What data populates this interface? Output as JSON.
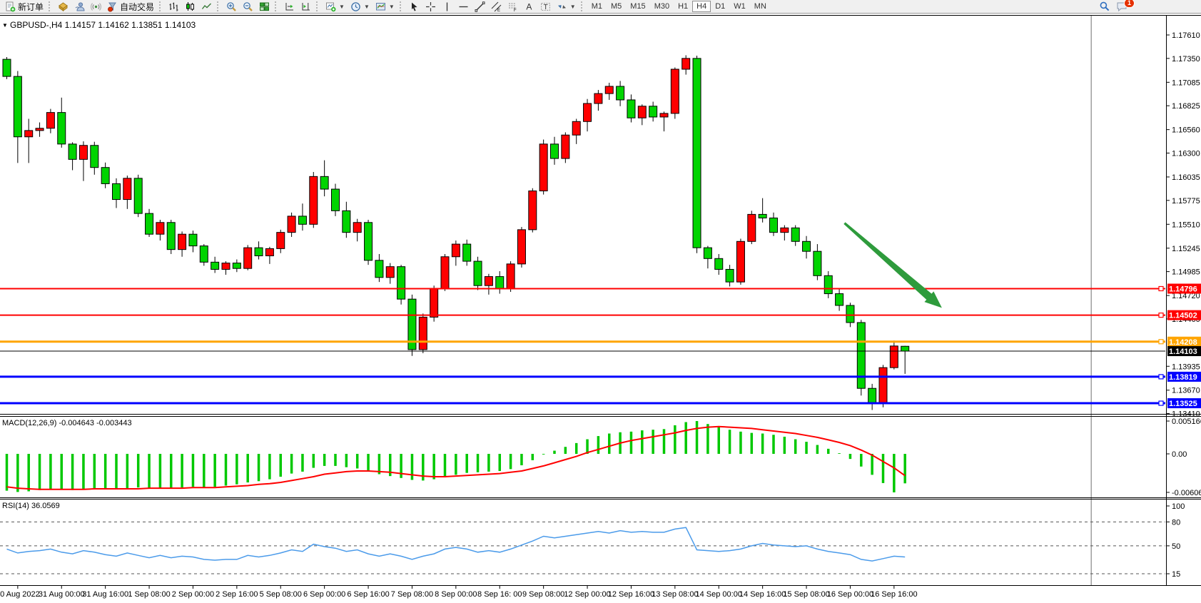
{
  "toolbar": {
    "new_order_label": "新订单",
    "auto_trading_label": "自动交易",
    "timeframes": [
      "M1",
      "M5",
      "M15",
      "M30",
      "H1",
      "H4",
      "D1",
      "W1",
      "MN"
    ],
    "active_timeframe": "H4",
    "notification_count": "1",
    "icon_names": [
      "new-order-icon",
      "market-icon",
      "community-icon",
      "signal-icon",
      "auto-trading-icon",
      "bars-chart-icon",
      "candles-chart-icon",
      "line-chart-icon",
      "zoom-in-icon",
      "zoom-out-icon",
      "tile-windows-icon",
      "auto-scroll-icon",
      "chart-shift-icon",
      "new-chart-icon",
      "periods-clock-icon",
      "templates-icon",
      "cursor-icon",
      "crosshair-icon",
      "vertical-line-icon",
      "horizontal-line-icon",
      "trendline-icon",
      "channel-icon",
      "fibonacci-icon",
      "text-icon",
      "text-label-icon",
      "shapes-icon",
      "search-icon",
      "chat-icon"
    ]
  },
  "chart_data": {
    "type": "candlestick+indicators",
    "title": {
      "collapse_arrow": "▼",
      "symbol_period": "GBPUSD-,H4",
      "open": "1.14157",
      "high": "1.14162",
      "low": "1.13851",
      "close": "1.14103"
    },
    "price_axis_ticks": [
      "1.17610",
      "1.17350",
      "1.17085",
      "1.16825",
      "1.16560",
      "1.16300",
      "1.16035",
      "1.15775",
      "1.15510",
      "1.15245",
      "1.14985",
      "1.14720",
      "1.14460",
      "1.13935",
      "1.13670",
      "1.13410"
    ],
    "time_labels": [
      "30 Aug 2022",
      "31 Aug 00:00",
      "31 Aug 16:00",
      "1 Sep 08:00",
      "2 Sep 00:00",
      "2 Sep 16:00",
      "5 Sep 08:00",
      "6 Sep 00:00",
      "6 Sep 16:00",
      "7 Sep 08:00",
      "8 Sep 00:00",
      "8 Sep 16: 00",
      "9 Sep 08:00",
      "12 Sep 00:00",
      "12 Sep 16:00",
      "13 Sep 08:00",
      "14 Sep 00:00",
      "14 Sep 16:00",
      "15 Sep 08:00",
      "16 Sep 00:00",
      "16 Sep 16:00"
    ],
    "colors": {
      "bull": "#FF0000",
      "bear": "#00D400",
      "wick": "#000000",
      "macd_histogram": "#00C800",
      "macd_signal": "#FF0000",
      "rsi_line": "#4B9BEA"
    },
    "horizontal_lines": [
      {
        "price": 1.14796,
        "color": "#FF0000",
        "width": 2
      },
      {
        "price": 1.14502,
        "color": "#FF0000",
        "width": 2
      },
      {
        "price": 1.14208,
        "color": "#FFA500",
        "width": 3
      },
      {
        "price": 1.13819,
        "color": "#0000FF",
        "width": 3
      },
      {
        "price": 1.13525,
        "color": "#0000FF",
        "width": 3
      }
    ],
    "bid_line": {
      "price": 1.14103,
      "color": "#000000"
    },
    "vertical_line": {
      "bar": 99,
      "color": "#6e6e6e"
    },
    "arrow_annotation": {
      "start_bar": 76.5,
      "start_price": 1.1552,
      "end_bar": 85.3,
      "end_price": 1.1459,
      "color": "#2E9B3C"
    },
    "candles": [
      [
        1.1734,
        1.17365,
        1.1712,
        1.1715
      ],
      [
        1.1715,
        1.1721,
        1.1619,
        1.1648
      ],
      [
        1.1648,
        1.1668,
        1.1619,
        1.1655
      ],
      [
        1.1655,
        1.1664,
        1.1648,
        1.16575
      ],
      [
        1.16575,
        1.1679,
        1.1652,
        1.1675
      ],
      [
        1.1675,
        1.16915,
        1.1636,
        1.164
      ],
      [
        1.164,
        1.1642,
        1.1611,
        1.1623
      ],
      [
        1.1623,
        1.1643,
        1.1599,
        1.16385
      ],
      [
        1.16385,
        1.16425,
        1.1606,
        1.1614
      ],
      [
        1.1614,
        1.16195,
        1.1591,
        1.1596
      ],
      [
        1.1596,
        1.1602,
        1.1569,
        1.15785
      ],
      [
        1.15785,
        1.1605,
        1.1568,
        1.1602
      ],
      [
        1.1602,
        1.1606,
        1.1559,
        1.1563
      ],
      [
        1.1563,
        1.1568,
        1.1537,
        1.154
      ],
      [
        1.154,
        1.1556,
        1.1533,
        1.1553
      ],
      [
        1.1553,
        1.1556,
        1.1518,
        1.1523
      ],
      [
        1.1523,
        1.1543,
        1.1515,
        1.154
      ],
      [
        1.154,
        1.1544,
        1.152,
        1.1527
      ],
      [
        1.1527,
        1.1529,
        1.1505,
        1.1509
      ],
      [
        1.1509,
        1.1515,
        1.1497,
        1.1501
      ],
      [
        1.1501,
        1.151,
        1.1495,
        1.1508
      ],
      [
        1.1508,
        1.1512,
        1.1498,
        1.1502
      ],
      [
        1.1502,
        1.1528,
        1.15,
        1.1525
      ],
      [
        1.1525,
        1.1532,
        1.1512,
        1.1516
      ],
      [
        1.1516,
        1.1526,
        1.1507,
        1.1524
      ],
      [
        1.1524,
        1.1545,
        1.1519,
        1.1542
      ],
      [
        1.1542,
        1.1564,
        1.1537,
        1.156
      ],
      [
        1.156,
        1.1574,
        1.1544,
        1.1551
      ],
      [
        1.1551,
        1.1609,
        1.1547,
        1.1604
      ],
      [
        1.1604,
        1.1622,
        1.1582,
        1.159
      ],
      [
        1.159,
        1.1596,
        1.156,
        1.1566
      ],
      [
        1.1566,
        1.1576,
        1.1536,
        1.1542
      ],
      [
        1.1542,
        1.1557,
        1.1532,
        1.1553
      ],
      [
        1.1553,
        1.1556,
        1.1506,
        1.1511
      ],
      [
        1.1511,
        1.1518,
        1.1487,
        1.1492
      ],
      [
        1.1492,
        1.1508,
        1.1485,
        1.1504
      ],
      [
        1.1504,
        1.1506,
        1.1462,
        1.1468
      ],
      [
        1.1468,
        1.1473,
        1.1405,
        1.1412
      ],
      [
        1.1412,
        1.1452,
        1.1408,
        1.1448
      ],
      [
        1.1448,
        1.1483,
        1.1443,
        1.148
      ],
      [
        1.148,
        1.1518,
        1.1477,
        1.1515
      ],
      [
        1.1515,
        1.1533,
        1.1505,
        1.1529
      ],
      [
        1.1529,
        1.1534,
        1.1505,
        1.151
      ],
      [
        1.151,
        1.1515,
        1.1478,
        1.1483
      ],
      [
        1.1483,
        1.1496,
        1.1473,
        1.1493
      ],
      [
        1.1493,
        1.1499,
        1.1474,
        1.148
      ],
      [
        1.148,
        1.151,
        1.1476,
        1.1507
      ],
      [
        1.1507,
        1.1548,
        1.1503,
        1.1545
      ],
      [
        1.1545,
        1.1591,
        1.1542,
        1.1588
      ],
      [
        1.1588,
        1.1645,
        1.1584,
        1.164
      ],
      [
        1.164,
        1.1648,
        1.1617,
        1.1624
      ],
      [
        1.1624,
        1.1653,
        1.1619,
        1.165
      ],
      [
        1.165,
        1.1668,
        1.164,
        1.1665
      ],
      [
        1.1665,
        1.169,
        1.1654,
        1.1685
      ],
      [
        1.1685,
        1.17,
        1.1677,
        1.1696
      ],
      [
        1.1696,
        1.1708,
        1.1689,
        1.1704
      ],
      [
        1.1704,
        1.171,
        1.1682,
        1.1689
      ],
      [
        1.1689,
        1.1695,
        1.1664,
        1.1669
      ],
      [
        1.1669,
        1.1684,
        1.1661,
        1.1682
      ],
      [
        1.1682,
        1.1687,
        1.1665,
        1.167
      ],
      [
        1.167,
        1.1676,
        1.1654,
        1.1674
      ],
      [
        1.1674,
        1.1725,
        1.1668,
        1.1723
      ],
      [
        1.1723,
        1.17385,
        1.1717,
        1.1735
      ],
      [
        1.1735,
        1.1738,
        1.1519,
        1.1525
      ],
      [
        1.1525,
        1.1527,
        1.1502,
        1.1513
      ],
      [
        1.1513,
        1.1518,
        1.1495,
        1.1501
      ],
      [
        1.1501,
        1.1506,
        1.1482,
        1.1487
      ],
      [
        1.1487,
        1.1535,
        1.1484,
        1.1532
      ],
      [
        1.1532,
        1.1566,
        1.1529,
        1.1562
      ],
      [
        1.1562,
        1.158,
        1.1553,
        1.1558
      ],
      [
        1.1558,
        1.1564,
        1.1538,
        1.1542
      ],
      [
        1.1542,
        1.155,
        1.1533,
        1.1547
      ],
      [
        1.1547,
        1.155,
        1.1527,
        1.1532
      ],
      [
        1.1532,
        1.1538,
        1.1513,
        1.1521
      ],
      [
        1.1521,
        1.1529,
        1.1489,
        1.1494
      ],
      [
        1.1494,
        1.1499,
        1.1469,
        1.1474
      ],
      [
        1.1474,
        1.1479,
        1.1455,
        1.1461
      ],
      [
        1.1461,
        1.1464,
        1.1437,
        1.1442
      ],
      [
        1.1442,
        1.1445,
        1.1361,
        1.1369
      ],
      [
        1.1369,
        1.1374,
        1.1345,
        1.1353
      ],
      [
        1.1353,
        1.1395,
        1.1348,
        1.1392
      ],
      [
        1.1392,
        1.1422,
        1.139,
        1.1416
      ],
      [
        1.14157,
        1.14162,
        1.13851,
        1.14103
      ]
    ],
    "macd": {
      "label": "MACD(12,26,9)",
      "value_main": "-0.004643",
      "value_signal": "-0.003443",
      "scale_ticks": [
        {
          "v": 0.005166,
          "label": "0.005166"
        },
        {
          "v": 0,
          "label": "0.00"
        },
        {
          "v": -0.006064,
          "label": "-0.006064"
        }
      ],
      "histogram": [
        -0.0058,
        -0.006,
        -0.0059,
        -0.0057,
        -0.0055,
        -0.0056,
        -0.0057,
        -0.0055,
        -0.0054,
        -0.0055,
        -0.0056,
        -0.0054,
        -0.0053,
        -0.0054,
        -0.0055,
        -0.0054,
        -0.0053,
        -0.0052,
        -0.0053,
        -0.0052,
        -0.005,
        -0.0048,
        -0.0045,
        -0.0043,
        -0.004,
        -0.0036,
        -0.0031,
        -0.0028,
        -0.0022,
        -0.0019,
        -0.0019,
        -0.0021,
        -0.0023,
        -0.0027,
        -0.0032,
        -0.0035,
        -0.0038,
        -0.0041,
        -0.0042,
        -0.004,
        -0.0037,
        -0.0033,
        -0.003,
        -0.0029,
        -0.0028,
        -0.0027,
        -0.0024,
        -0.0018,
        -0.001,
        -0.0001,
        0.0005,
        0.0011,
        0.0017,
        0.0023,
        0.0028,
        0.0032,
        0.0034,
        0.0035,
        0.0037,
        0.0038,
        0.0039,
        0.0045,
        0.005,
        0.005166,
        0.0047,
        0.0043,
        0.0038,
        0.0035,
        0.0033,
        0.0032,
        0.003,
        0.0027,
        0.0023,
        0.0019,
        0.0014,
        0.0008,
        0.0001,
        -0.0008,
        -0.002,
        -0.0033,
        -0.0046,
        -0.006064,
        -0.004643
      ],
      "signal": [
        -0.0052,
        -0.0054,
        -0.0055,
        -0.0056,
        -0.0056,
        -0.0056,
        -0.0056,
        -0.0056,
        -0.0055,
        -0.0055,
        -0.0055,
        -0.0055,
        -0.0055,
        -0.0054,
        -0.0054,
        -0.0054,
        -0.0054,
        -0.0053,
        -0.0053,
        -0.0053,
        -0.0052,
        -0.0051,
        -0.005,
        -0.0048,
        -0.0047,
        -0.0045,
        -0.0042,
        -0.0039,
        -0.0036,
        -0.0032,
        -0.003,
        -0.0028,
        -0.0027,
        -0.0027,
        -0.0028,
        -0.0029,
        -0.0031,
        -0.0033,
        -0.0035,
        -0.0036,
        -0.0036,
        -0.0035,
        -0.0034,
        -0.0033,
        -0.0032,
        -0.0031,
        -0.0029,
        -0.0027,
        -0.0023,
        -0.0019,
        -0.0014,
        -0.0009,
        -0.0004,
        0.0002,
        0.0007,
        0.0012,
        0.0017,
        0.0021,
        0.0024,
        0.0027,
        0.003,
        0.0033,
        0.0037,
        0.004,
        0.0042,
        0.0043,
        0.0042,
        0.0041,
        0.004,
        0.0038,
        0.0036,
        0.0034,
        0.0032,
        0.0029,
        0.0026,
        0.0022,
        0.0018,
        0.0013,
        0.0006,
        -0.0002,
        -0.0012,
        -0.0022,
        -0.003443
      ]
    },
    "rsi": {
      "label": "RSI(14)",
      "value": "36.0569",
      "scale_ticks": [
        {
          "v": 100,
          "label": "100",
          "dashed": false
        },
        {
          "v": 80,
          "label": "80",
          "dashed": true
        },
        {
          "v": 50,
          "label": "50",
          "dashed": true
        },
        {
          "v": 15,
          "label": "15",
          "dashed": true
        }
      ],
      "values": [
        46,
        41,
        43,
        44,
        46,
        42,
        40,
        44,
        42,
        39,
        37,
        41,
        38,
        35,
        38,
        35,
        37,
        36,
        33,
        32,
        33,
        33,
        38,
        36,
        38,
        41,
        45,
        43,
        52,
        49,
        47,
        43,
        45,
        40,
        37,
        40,
        37,
        33,
        37,
        40,
        46,
        48,
        46,
        42,
        44,
        42,
        46,
        51,
        56,
        62,
        60,
        62,
        64,
        66,
        68,
        66,
        69,
        67,
        68,
        67,
        67,
        71,
        73,
        45,
        44,
        43,
        44,
        46,
        50,
        53,
        51,
        50,
        49,
        50,
        46,
        43,
        41,
        39,
        33,
        31,
        34,
        37,
        36.0569
      ]
    }
  }
}
